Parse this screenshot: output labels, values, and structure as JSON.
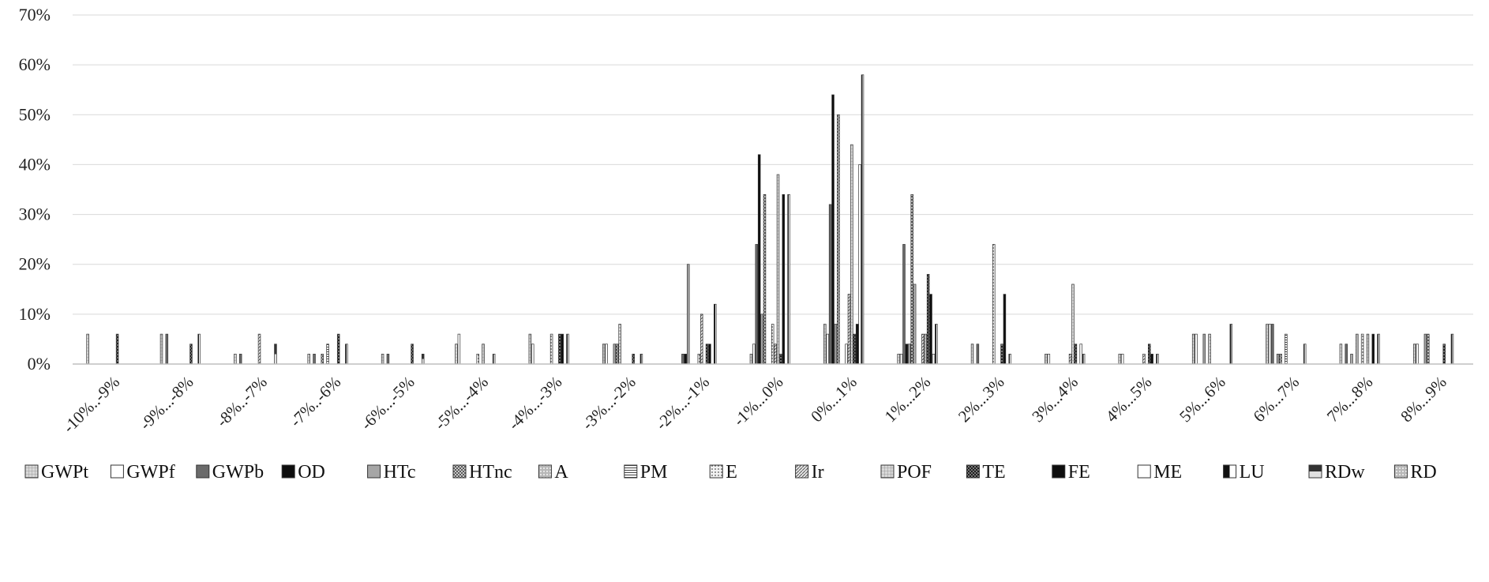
{
  "chart_data": {
    "type": "bar",
    "title": "",
    "xlabel": "",
    "ylabel": "",
    "ylim": [
      0,
      70
    ],
    "y_unit": "%",
    "y_ticks": [
      "0%",
      "10%",
      "20%",
      "30%",
      "40%",
      "50%",
      "60%",
      "70%"
    ],
    "grid": true,
    "legend_position": "bottom",
    "categories": [
      "-10%..-9%",
      "-9%...-8%",
      "-8%..-7%",
      "-7%..-6%",
      "-6%...-5%",
      "-5%...-4%",
      "-4%...-3%",
      "-3%...-2%",
      "-2%...-1%",
      "-1%...0%",
      "0%...1%",
      "1%...2%",
      "2%...3%",
      "3%...4%",
      "4%...5%",
      "5%...6%",
      "6%...7%",
      "7%...8%",
      "8%...9%"
    ],
    "series": [
      {
        "name": "GWPt",
        "pattern": "light-grid",
        "values": [
          6,
          6,
          2,
          2,
          2,
          4,
          6,
          4,
          0,
          2,
          8,
          2,
          4,
          2,
          2,
          6,
          8,
          4,
          4
        ]
      },
      {
        "name": "GWPf",
        "pattern": "white",
        "values": [
          0,
          0,
          0,
          0,
          0,
          6,
          4,
          4,
          0,
          4,
          6,
          2,
          0,
          2,
          2,
          6,
          8,
          0,
          4
        ]
      },
      {
        "name": "GWPb",
        "pattern": "dark-grey",
        "values": [
          0,
          6,
          2,
          2,
          2,
          0,
          0,
          0,
          2,
          24,
          32,
          24,
          4,
          0,
          0,
          0,
          8,
          4,
          0
        ]
      },
      {
        "name": "OD",
        "pattern": "black",
        "values": [
          0,
          0,
          0,
          0,
          0,
          0,
          0,
          0,
          2,
          42,
          54,
          4,
          0,
          0,
          0,
          0,
          0,
          0,
          0
        ]
      },
      {
        "name": "HTc",
        "pattern": "grey",
        "values": [
          0,
          0,
          0,
          0,
          0,
          0,
          0,
          4,
          20,
          10,
          8,
          4,
          0,
          0,
          0,
          6,
          2,
          2,
          6
        ]
      },
      {
        "name": "HTnc",
        "pattern": "checker",
        "values": [
          0,
          0,
          0,
          2,
          0,
          0,
          0,
          4,
          0,
          34,
          50,
          34,
          0,
          0,
          0,
          0,
          2,
          0,
          6
        ]
      },
      {
        "name": "A",
        "pattern": "light-block",
        "values": [
          0,
          0,
          0,
          0,
          0,
          0,
          0,
          8,
          0,
          0,
          0,
          16,
          0,
          0,
          0,
          6,
          0,
          6,
          0
        ]
      },
      {
        "name": "PM",
        "pattern": "h-lines",
        "values": [
          0,
          0,
          0,
          4,
          0,
          0,
          0,
          0,
          0,
          0,
          0,
          0,
          0,
          0,
          0,
          0,
          6,
          0,
          0
        ]
      },
      {
        "name": "E",
        "pattern": "dots",
        "values": [
          0,
          0,
          0,
          0,
          0,
          2,
          6,
          0,
          2,
          8,
          4,
          0,
          24,
          0,
          0,
          0,
          0,
          6,
          0
        ]
      },
      {
        "name": "Ir",
        "pattern": "diag",
        "values": [
          0,
          0,
          6,
          0,
          0,
          0,
          0,
          0,
          10,
          4,
          14,
          6,
          0,
          2,
          2,
          0,
          0,
          0,
          0
        ]
      },
      {
        "name": "POF",
        "pattern": "light-grid",
        "values": [
          0,
          0,
          0,
          0,
          0,
          4,
          0,
          0,
          0,
          38,
          44,
          6,
          0,
          16,
          0,
          0,
          0,
          6,
          0
        ]
      },
      {
        "name": "TE",
        "pattern": "dark-check",
        "values": [
          6,
          4,
          0,
          6,
          4,
          0,
          6,
          2,
          4,
          2,
          6,
          18,
          4,
          4,
          4,
          0,
          0,
          0,
          4
        ]
      },
      {
        "name": "FE",
        "pattern": "black",
        "values": [
          0,
          0,
          0,
          0,
          0,
          0,
          6,
          0,
          4,
          34,
          8,
          14,
          14,
          0,
          2,
          0,
          0,
          6,
          0
        ]
      },
      {
        "name": "ME",
        "pattern": "white",
        "values": [
          0,
          0,
          0,
          0,
          0,
          0,
          0,
          0,
          0,
          0,
          40,
          2,
          0,
          4,
          0,
          0,
          0,
          0,
          0
        ]
      },
      {
        "name": "LU",
        "pattern": "half-black",
        "values": [
          0,
          6,
          0,
          4,
          0,
          2,
          6,
          2,
          12,
          34,
          58,
          8,
          2,
          2,
          2,
          8,
          4,
          6,
          6
        ]
      },
      {
        "name": "RDw",
        "pattern": "half-dark",
        "values": [
          0,
          0,
          4,
          0,
          2,
          0,
          0,
          0,
          0,
          0,
          0,
          0,
          0,
          0,
          0,
          0,
          0,
          0,
          0
        ]
      },
      {
        "name": "RD",
        "pattern": "light-block",
        "values": [
          0,
          0,
          0,
          0,
          0,
          0,
          0,
          0,
          0,
          0,
          0,
          0,
          0,
          0,
          0,
          0,
          0,
          0,
          0
        ]
      }
    ]
  }
}
